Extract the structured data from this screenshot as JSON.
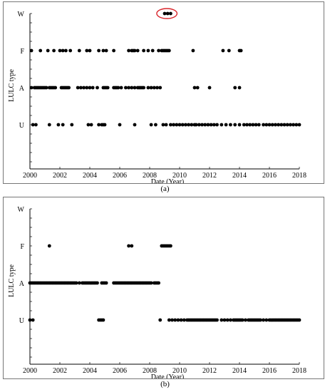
{
  "captions": {
    "a": "(a)",
    "b": "(b)"
  },
  "chart_data": [
    {
      "type": "scatter",
      "panel": "a",
      "xlabel": "Date (Year)",
      "ylabel": "LULC type",
      "xlim": [
        2000,
        2018
      ],
      "xticks": [
        2000,
        2002,
        2004,
        2006,
        2008,
        2010,
        2012,
        2014,
        2016,
        2018
      ],
      "categories": [
        "U",
        "A",
        "F",
        "W"
      ],
      "annotation": {
        "type": "ellipse",
        "highlight_color": "#d9262c",
        "around": "W",
        "x_range": [
          2008.9,
          2009.4
        ]
      },
      "series": [
        {
          "category": "W",
          "x": [
            2009.0,
            2009.2,
            2009.4
          ]
        },
        {
          "category": "F",
          "x": [
            2000.1,
            2000.7,
            2001.2,
            2001.6,
            2002.0,
            2002.2,
            2002.4,
            2002.7,
            2003.3,
            2003.8,
            2004.0,
            2004.6,
            2004.9,
            2005.1,
            2005.6,
            2006.6,
            2006.8,
            2006.9,
            2007.0,
            2007.2,
            2007.6,
            2007.9,
            2008.2,
            2008.6,
            2008.8,
            2008.9,
            2009.0,
            2009.1,
            2009.2,
            2009.3,
            2010.9,
            2012.9,
            2013.3,
            2014.0,
            2014.1
          ]
        },
        {
          "category": "A",
          "x": [
            2000.1,
            2000.3,
            2000.4,
            2000.5,
            2000.6,
            2000.7,
            2000.8,
            2000.9,
            2001.0,
            2001.1,
            2001.3,
            2001.4,
            2001.5,
            2001.6,
            2001.7,
            2002.1,
            2002.2,
            2002.3,
            2002.4,
            2002.5,
            2002.6,
            2003.2,
            2003.4,
            2003.6,
            2003.8,
            2004.0,
            2004.2,
            2004.5,
            2004.9,
            2005.0,
            2005.1,
            2005.2,
            2005.6,
            2005.7,
            2005.8,
            2005.9,
            2006.1,
            2006.4,
            2006.6,
            2006.8,
            2007.0,
            2007.2,
            2007.3,
            2007.4,
            2007.5,
            2007.6,
            2007.9,
            2008.1,
            2008.3,
            2008.5,
            2008.7,
            2011.0,
            2011.2,
            2012.0,
            2013.7,
            2014.0
          ]
        },
        {
          "category": "U",
          "x": [
            2000.2,
            2000.4,
            2001.3,
            2001.9,
            2002.2,
            2002.8,
            2003.9,
            2004.1,
            2004.6,
            2004.8,
            2004.9,
            2005.0,
            2006.0,
            2007.0,
            2008.1,
            2008.4,
            2008.9,
            2009.1,
            2009.4,
            2009.6,
            2009.8,
            2010.0,
            2010.2,
            2010.4,
            2010.6,
            2010.8,
            2011.0,
            2011.1,
            2011.3,
            2011.5,
            2011.7,
            2011.9,
            2012.1,
            2012.3,
            2012.5,
            2012.8,
            2013.1,
            2013.4,
            2013.7,
            2014.0,
            2014.3,
            2014.5,
            2014.7,
            2014.9,
            2015.1,
            2015.3,
            2015.6,
            2015.8,
            2016.0,
            2016.2,
            2016.4,
            2016.6,
            2016.8,
            2017.0,
            2017.2,
            2017.4,
            2017.6,
            2017.8,
            2018.0
          ]
        }
      ]
    },
    {
      "type": "scatter",
      "panel": "b",
      "xlabel": "Date (Year)",
      "ylabel": "LULC type",
      "xlim": [
        2000,
        2018
      ],
      "xticks": [
        2000,
        2002,
        2004,
        2006,
        2008,
        2010,
        2012,
        2014,
        2016,
        2018
      ],
      "categories": [
        "U",
        "A",
        "F",
        "W"
      ],
      "series": [
        {
          "category": "W",
          "x": []
        },
        {
          "category": "F",
          "x": [
            2001.3,
            2006.6,
            2006.8,
            2008.8,
            2008.9,
            2009.0,
            2009.1,
            2009.2,
            2009.3,
            2009.4
          ]
        },
        {
          "category": "A",
          "x": [
            2000.0,
            2000.1,
            2000.2,
            2000.3,
            2000.4,
            2000.5,
            2000.6,
            2000.7,
            2000.8,
            2000.9,
            2001.0,
            2001.1,
            2001.2,
            2001.3,
            2001.4,
            2001.5,
            2001.6,
            2001.7,
            2001.8,
            2001.9,
            2002.0,
            2002.1,
            2002.2,
            2002.3,
            2002.4,
            2002.5,
            2002.6,
            2002.7,
            2002.8,
            2002.9,
            2003.0,
            2003.1,
            2003.3,
            2003.5,
            2003.6,
            2003.7,
            2003.8,
            2003.9,
            2004.0,
            2004.1,
            2004.2,
            2004.3,
            2004.4,
            2004.5,
            2004.8,
            2004.9,
            2005.0,
            2005.1,
            2005.6,
            2005.7,
            2005.8,
            2005.9,
            2006.0,
            2006.1,
            2006.2,
            2006.3,
            2006.4,
            2006.5,
            2006.6,
            2006.7,
            2006.8,
            2006.9,
            2007.0,
            2007.1,
            2007.2,
            2007.3,
            2007.4,
            2007.5,
            2007.6,
            2007.7,
            2007.8,
            2007.9,
            2008.0,
            2008.1,
            2008.3,
            2008.4,
            2008.5,
            2008.6
          ]
        },
        {
          "category": "U",
          "x": [
            2000.0,
            2000.2,
            2004.6,
            2004.7,
            2004.8,
            2004.9,
            2008.7,
            2009.3,
            2009.5,
            2009.7,
            2009.9,
            2010.1,
            2010.3,
            2010.5,
            2010.6,
            2010.7,
            2010.8,
            2010.9,
            2011.0,
            2011.1,
            2011.2,
            2011.3,
            2011.4,
            2011.5,
            2011.6,
            2011.7,
            2011.8,
            2011.9,
            2012.0,
            2012.1,
            2012.2,
            2012.3,
            2012.4,
            2012.5,
            2012.8,
            2013.0,
            2013.2,
            2013.4,
            2013.6,
            2013.7,
            2013.8,
            2013.9,
            2014.0,
            2014.1,
            2014.2,
            2014.4,
            2014.6,
            2014.7,
            2014.8,
            2014.9,
            2015.0,
            2015.1,
            2015.2,
            2015.3,
            2015.4,
            2015.6,
            2015.8,
            2016.0,
            2016.1,
            2016.2,
            2016.3,
            2016.4,
            2016.5,
            2016.6,
            2016.7,
            2016.8,
            2016.9,
            2017.0,
            2017.1,
            2017.2,
            2017.3,
            2017.4,
            2017.5,
            2017.6,
            2017.7,
            2017.8,
            2017.9,
            2018.0
          ]
        }
      ]
    }
  ]
}
